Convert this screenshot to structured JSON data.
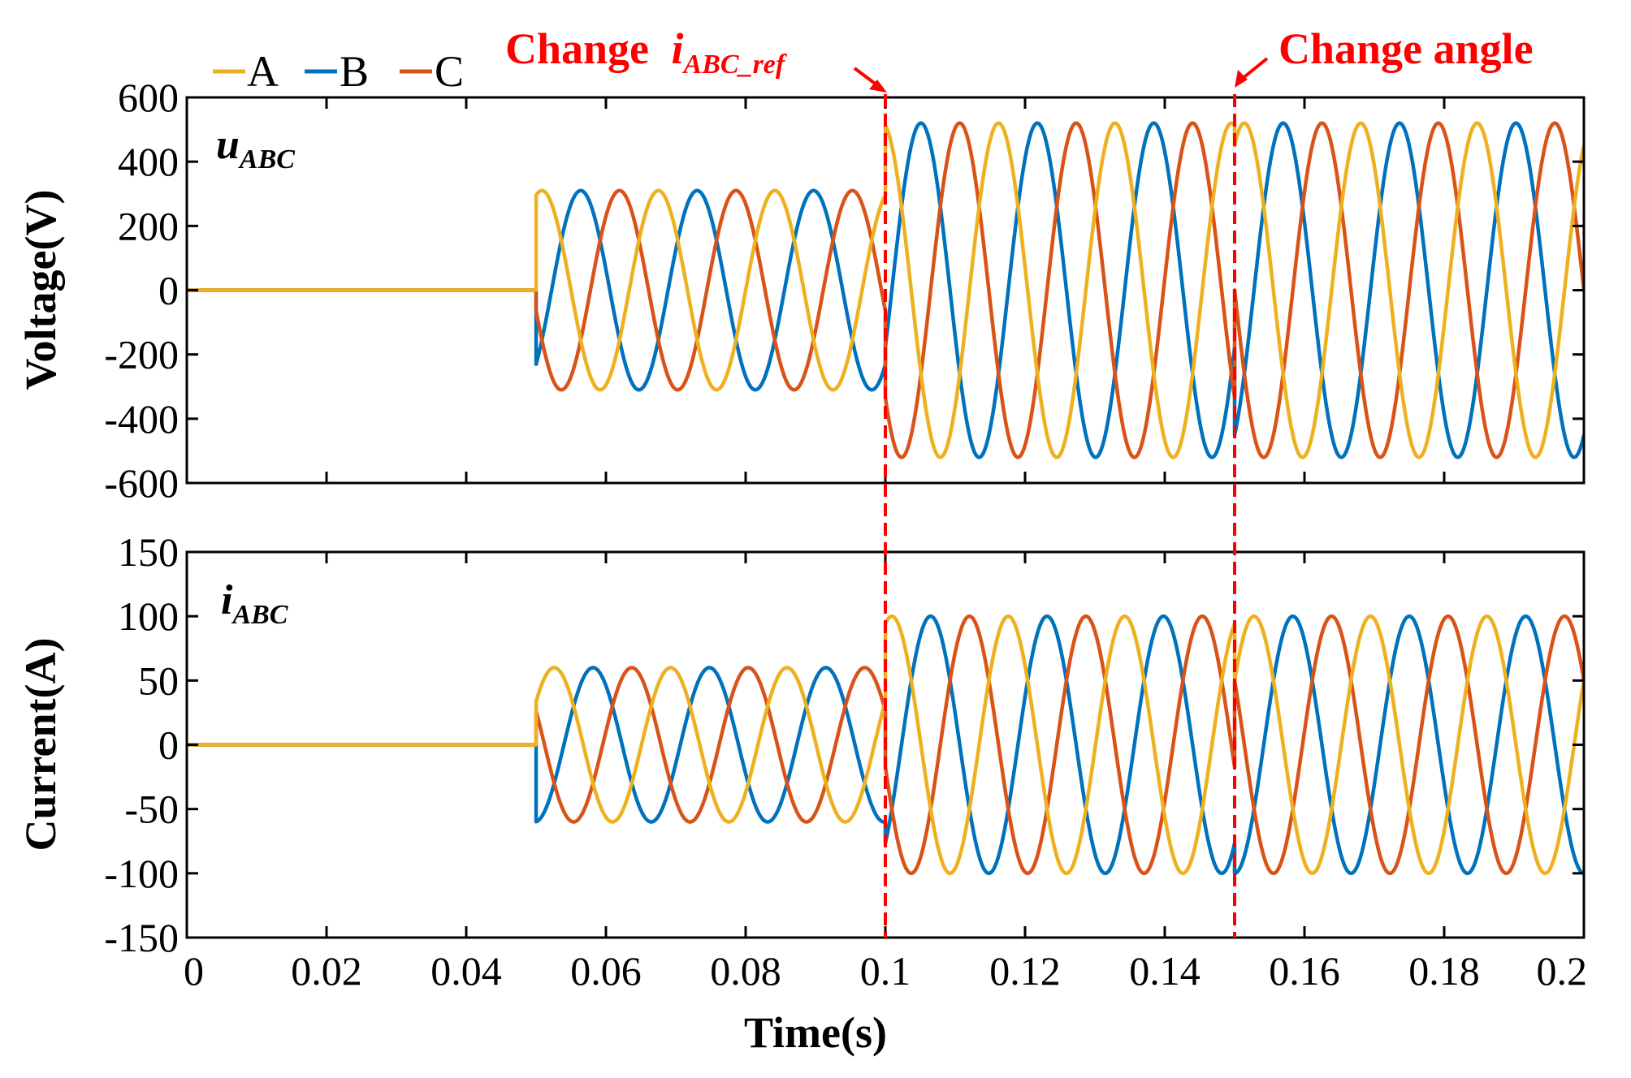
{
  "annotations": {
    "change_ref": {
      "word": "Change",
      "symbol": "i",
      "subscript": "ABC_ref"
    },
    "change_angle": "Change angle"
  },
  "chart_data": [
    {
      "type": "line",
      "tag": {
        "main": "u",
        "sub": "ABC"
      },
      "ylabel": "Voltage(V)",
      "xlabel": "",
      "xlim": [
        0,
        0.2
      ],
      "ylim": [
        -600,
        600
      ],
      "yticks": [
        "600",
        "400",
        "200",
        "0",
        "-200",
        "-400",
        "-600"
      ],
      "ytick_values": [
        600,
        400,
        200,
        0,
        -200,
        -400,
        -600
      ],
      "xticks": [
        0,
        0.02,
        0.04,
        0.06,
        0.08,
        0.1,
        0.12,
        0.14,
        0.16,
        0.18,
        0.2
      ],
      "frequency_hz": 60,
      "events": [
        0.1,
        0.15
      ],
      "series": [
        {
          "name": "A",
          "color": "#EDB120",
          "segments": [
            {
              "t_start": 0,
              "t_end": 0.05,
              "amplitude": 0,
              "phase_deg": 0
            },
            {
              "t_start": 0.05,
              "t_end": 0.1,
              "amplitude": 310,
              "phase_deg": 72
            },
            {
              "t_start": 0.1,
              "t_end": 0.15,
              "amplitude": 520,
              "phase_deg": 100
            },
            {
              "t_start": 0.15,
              "t_end": 0.2,
              "amplitude": 520,
              "phase_deg": 60
            }
          ]
        },
        {
          "name": "B",
          "color": "#0072BD",
          "segments": [
            {
              "t_start": 0,
              "t_end": 0.05,
              "amplitude": 0,
              "phase_deg": 0
            },
            {
              "t_start": 0.05,
              "t_end": 0.1,
              "amplitude": 310,
              "phase_deg": -48
            },
            {
              "t_start": 0.1,
              "t_end": 0.15,
              "amplitude": 520,
              "phase_deg": -20
            },
            {
              "t_start": 0.15,
              "t_end": 0.2,
              "amplitude": 520,
              "phase_deg": -60
            }
          ]
        },
        {
          "name": "C",
          "color": "#D95319",
          "segments": [
            {
              "t_start": 0,
              "t_end": 0.05,
              "amplitude": 0,
              "phase_deg": 0
            },
            {
              "t_start": 0.05,
              "t_end": 0.1,
              "amplitude": 310,
              "phase_deg": 192
            },
            {
              "t_start": 0.1,
              "t_end": 0.15,
              "amplitude": 520,
              "phase_deg": 220
            },
            {
              "t_start": 0.15,
              "t_end": 0.2,
              "amplitude": 520,
              "phase_deg": 180
            }
          ]
        }
      ]
    },
    {
      "type": "line",
      "tag": {
        "main": "i",
        "sub": "ABC"
      },
      "ylabel": "Current(A)",
      "xlabel": "Time(s)",
      "xlim": [
        0,
        0.2
      ],
      "ylim": [
        -150,
        150
      ],
      "yticks": [
        "150",
        "100",
        "50",
        "0",
        "-50",
        "-100",
        "-150"
      ],
      "ytick_values": [
        150,
        100,
        50,
        0,
        -50,
        -100,
        -150
      ],
      "xticks": [
        0,
        0.02,
        0.04,
        0.06,
        0.08,
        0.1,
        0.12,
        0.14,
        0.16,
        0.18,
        0.2
      ],
      "xtick_labels": [
        "0",
        "0.02",
        "0.04",
        "0.06",
        "0.08",
        "0.1",
        "0.12",
        "0.14",
        "0.16",
        "0.18",
        "0.2"
      ],
      "frequency_hz": 60,
      "events": [
        0.1,
        0.15
      ],
      "series": [
        {
          "name": "A",
          "color": "#EDB120",
          "segments": [
            {
              "t_start": 0,
              "t_end": 0.05,
              "amplitude": 0,
              "phase_deg": 0
            },
            {
              "t_start": 0.05,
              "t_end": 0.1,
              "amplitude": 60,
              "phase_deg": 34
            },
            {
              "t_start": 0.1,
              "t_end": 0.15,
              "amplitude": 100,
              "phase_deg": 70
            },
            {
              "t_start": 0.15,
              "t_end": 0.2,
              "amplitude": 100,
              "phase_deg": 30
            }
          ]
        },
        {
          "name": "B",
          "color": "#0072BD",
          "segments": [
            {
              "t_start": 0,
              "t_end": 0.05,
              "amplitude": 0,
              "phase_deg": 0
            },
            {
              "t_start": 0.05,
              "t_end": 0.1,
              "amplitude": 60,
              "phase_deg": -86
            },
            {
              "t_start": 0.1,
              "t_end": 0.15,
              "amplitude": 100,
              "phase_deg": -50
            },
            {
              "t_start": 0.15,
              "t_end": 0.2,
              "amplitude": 100,
              "phase_deg": -90
            }
          ]
        },
        {
          "name": "C",
          "color": "#D95319",
          "segments": [
            {
              "t_start": 0,
              "t_end": 0.05,
              "amplitude": 0,
              "phase_deg": 0
            },
            {
              "t_start": 0.05,
              "t_end": 0.1,
              "amplitude": 60,
              "phase_deg": 154
            },
            {
              "t_start": 0.1,
              "t_end": 0.15,
              "amplitude": 100,
              "phase_deg": 190
            },
            {
              "t_start": 0.15,
              "t_end": 0.2,
              "amplitude": 100,
              "phase_deg": 150
            }
          ]
        }
      ]
    }
  ],
  "event_line_color": "#FF0000"
}
